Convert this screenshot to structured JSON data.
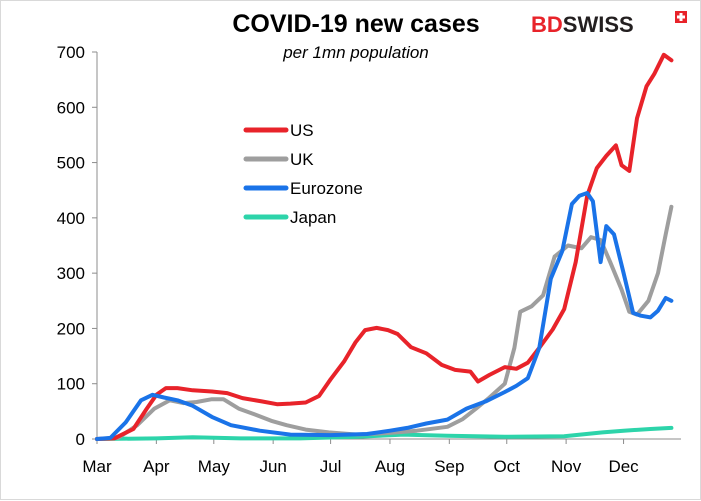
{
  "logo": {
    "part1": "BD",
    "part2": "SWISS",
    "brand_color": "#e8232a",
    "dark_color": "#231f20"
  },
  "chart_data": {
    "type": "line",
    "title": "COVID-19 new cases",
    "subtitle": "per 1mn population",
    "xlabel": "",
    "ylabel": "",
    "ylim": [
      0,
      700
    ],
    "yticks": [
      0,
      100,
      200,
      300,
      400,
      500,
      600,
      700
    ],
    "xlim": [
      "2020-03-01",
      "2020-12-31"
    ],
    "xticks": [
      {
        "label": "Mar",
        "date": "2020-03-01"
      },
      {
        "label": "Apr",
        "date": "2020-04-01"
      },
      {
        "label": "May",
        "date": "2020-05-01"
      },
      {
        "label": "Jun",
        "date": "2020-06-01"
      },
      {
        "label": "Jul",
        "date": "2020-07-01"
      },
      {
        "label": "Aug",
        "date": "2020-08-01"
      },
      {
        "label": "Sep",
        "date": "2020-09-01"
      },
      {
        "label": "Oct",
        "date": "2020-10-01"
      },
      {
        "label": "Nov",
        "date": "2020-11-01"
      },
      {
        "label": "Dec",
        "date": "2020-12-01"
      }
    ],
    "grid": false,
    "legend_position": "upper-left inside plot",
    "series": [
      {
        "name": "US",
        "color": "#e8232a",
        "points": [
          [
            "2020-03-01",
            0
          ],
          [
            "2020-03-10",
            1
          ],
          [
            "2020-03-20",
            18
          ],
          [
            "2020-03-27",
            55
          ],
          [
            "2020-04-01",
            80
          ],
          [
            "2020-04-06",
            92
          ],
          [
            "2020-04-12",
            92
          ],
          [
            "2020-04-20",
            88
          ],
          [
            "2020-04-30",
            86
          ],
          [
            "2020-05-08",
            83
          ],
          [
            "2020-05-16",
            74
          ],
          [
            "2020-05-26",
            68
          ],
          [
            "2020-06-03",
            63
          ],
          [
            "2020-06-10",
            64
          ],
          [
            "2020-06-18",
            66
          ],
          [
            "2020-06-25",
            78
          ],
          [
            "2020-07-01",
            108
          ],
          [
            "2020-07-08",
            140
          ],
          [
            "2020-07-14",
            175
          ],
          [
            "2020-07-19",
            197
          ],
          [
            "2020-07-25",
            201
          ],
          [
            "2020-07-31",
            197
          ],
          [
            "2020-08-05",
            190
          ],
          [
            "2020-08-12",
            166
          ],
          [
            "2020-08-20",
            155
          ],
          [
            "2020-08-28",
            134
          ],
          [
            "2020-09-04",
            125
          ],
          [
            "2020-09-12",
            122
          ],
          [
            "2020-09-16",
            104
          ],
          [
            "2020-09-22",
            116
          ],
          [
            "2020-09-30",
            130
          ],
          [
            "2020-10-06",
            127
          ],
          [
            "2020-10-12",
            138
          ],
          [
            "2020-10-18",
            165
          ],
          [
            "2020-10-25",
            198
          ],
          [
            "2020-10-31",
            235
          ],
          [
            "2020-11-06",
            320
          ],
          [
            "2020-11-12",
            440
          ],
          [
            "2020-11-17",
            490
          ],
          [
            "2020-11-22",
            512
          ],
          [
            "2020-11-27",
            531
          ],
          [
            "2020-11-30",
            495
          ],
          [
            "2020-12-04",
            485
          ],
          [
            "2020-12-08",
            580
          ],
          [
            "2020-12-13",
            638
          ],
          [
            "2020-12-17",
            660
          ],
          [
            "2020-12-22",
            695
          ],
          [
            "2020-12-26",
            685
          ]
        ]
      },
      {
        "name": "UK",
        "color": "#9e9e9e",
        "points": [
          [
            "2020-03-01",
            0
          ],
          [
            "2020-03-12",
            2
          ],
          [
            "2020-03-22",
            25
          ],
          [
            "2020-03-31",
            55
          ],
          [
            "2020-04-08",
            70
          ],
          [
            "2020-04-15",
            65
          ],
          [
            "2020-04-22",
            67
          ],
          [
            "2020-04-30",
            72
          ],
          [
            "2020-05-06",
            72
          ],
          [
            "2020-05-14",
            55
          ],
          [
            "2020-05-22",
            45
          ],
          [
            "2020-05-31",
            33
          ],
          [
            "2020-06-08",
            25
          ],
          [
            "2020-06-18",
            17
          ],
          [
            "2020-06-30",
            12
          ],
          [
            "2020-07-15",
            8
          ],
          [
            "2020-08-01",
            11
          ],
          [
            "2020-08-15",
            15
          ],
          [
            "2020-08-31",
            22
          ],
          [
            "2020-09-08",
            36
          ],
          [
            "2020-09-15",
            55
          ],
          [
            "2020-09-22",
            75
          ],
          [
            "2020-09-30",
            100
          ],
          [
            "2020-10-05",
            165
          ],
          [
            "2020-10-08",
            230
          ],
          [
            "2020-10-14",
            240
          ],
          [
            "2020-10-20",
            260
          ],
          [
            "2020-10-26",
            330
          ],
          [
            "2020-11-02",
            350
          ],
          [
            "2020-11-09",
            345
          ],
          [
            "2020-11-14",
            365
          ],
          [
            "2020-11-19",
            360
          ],
          [
            "2020-11-24",
            320
          ],
          [
            "2020-11-30",
            270
          ],
          [
            "2020-12-04",
            230
          ],
          [
            "2020-12-08",
            225
          ],
          [
            "2020-12-14",
            250
          ],
          [
            "2020-12-19",
            300
          ],
          [
            "2020-12-23",
            370
          ],
          [
            "2020-12-26",
            420
          ]
        ]
      },
      {
        "name": "Eurozone",
        "color": "#1a73e8",
        "points": [
          [
            "2020-03-01",
            0
          ],
          [
            "2020-03-08",
            2
          ],
          [
            "2020-03-16",
            30
          ],
          [
            "2020-03-24",
            70
          ],
          [
            "2020-03-30",
            80
          ],
          [
            "2020-04-05",
            75
          ],
          [
            "2020-04-12",
            70
          ],
          [
            "2020-04-20",
            60
          ],
          [
            "2020-04-30",
            40
          ],
          [
            "2020-05-10",
            25
          ],
          [
            "2020-05-25",
            15
          ],
          [
            "2020-06-10",
            8
          ],
          [
            "2020-07-01",
            7
          ],
          [
            "2020-07-20",
            9
          ],
          [
            "2020-08-01",
            15
          ],
          [
            "2020-08-10",
            20
          ],
          [
            "2020-08-20",
            28
          ],
          [
            "2020-08-31",
            35
          ],
          [
            "2020-09-10",
            55
          ],
          [
            "2020-09-20",
            68
          ],
          [
            "2020-09-30",
            85
          ],
          [
            "2020-10-06",
            96
          ],
          [
            "2020-10-12",
            110
          ],
          [
            "2020-10-18",
            165
          ],
          [
            "2020-10-24",
            290
          ],
          [
            "2020-10-30",
            340
          ],
          [
            "2020-11-04",
            425
          ],
          [
            "2020-11-08",
            440
          ],
          [
            "2020-11-12",
            445
          ],
          [
            "2020-11-15",
            430
          ],
          [
            "2020-11-19",
            320
          ],
          [
            "2020-11-22",
            385
          ],
          [
            "2020-11-26",
            370
          ],
          [
            "2020-12-01",
            300
          ],
          [
            "2020-12-06",
            228
          ],
          [
            "2020-12-10",
            223
          ],
          [
            "2020-12-15",
            220
          ],
          [
            "2020-12-19",
            232
          ],
          [
            "2020-12-23",
            255
          ],
          [
            "2020-12-26",
            250
          ]
        ]
      },
      {
        "name": "Japan",
        "color": "#2dd4aa",
        "points": [
          [
            "2020-03-01",
            0
          ],
          [
            "2020-04-01",
            1
          ],
          [
            "2020-04-20",
            3
          ],
          [
            "2020-05-15",
            1
          ],
          [
            "2020-06-15",
            1
          ],
          [
            "2020-07-15",
            4
          ],
          [
            "2020-08-08",
            8
          ],
          [
            "2020-08-31",
            6
          ],
          [
            "2020-09-30",
            4
          ],
          [
            "2020-10-31",
            5
          ],
          [
            "2020-11-20",
            12
          ],
          [
            "2020-12-01",
            15
          ],
          [
            "2020-12-15",
            18
          ],
          [
            "2020-12-26",
            20
          ]
        ]
      }
    ]
  }
}
